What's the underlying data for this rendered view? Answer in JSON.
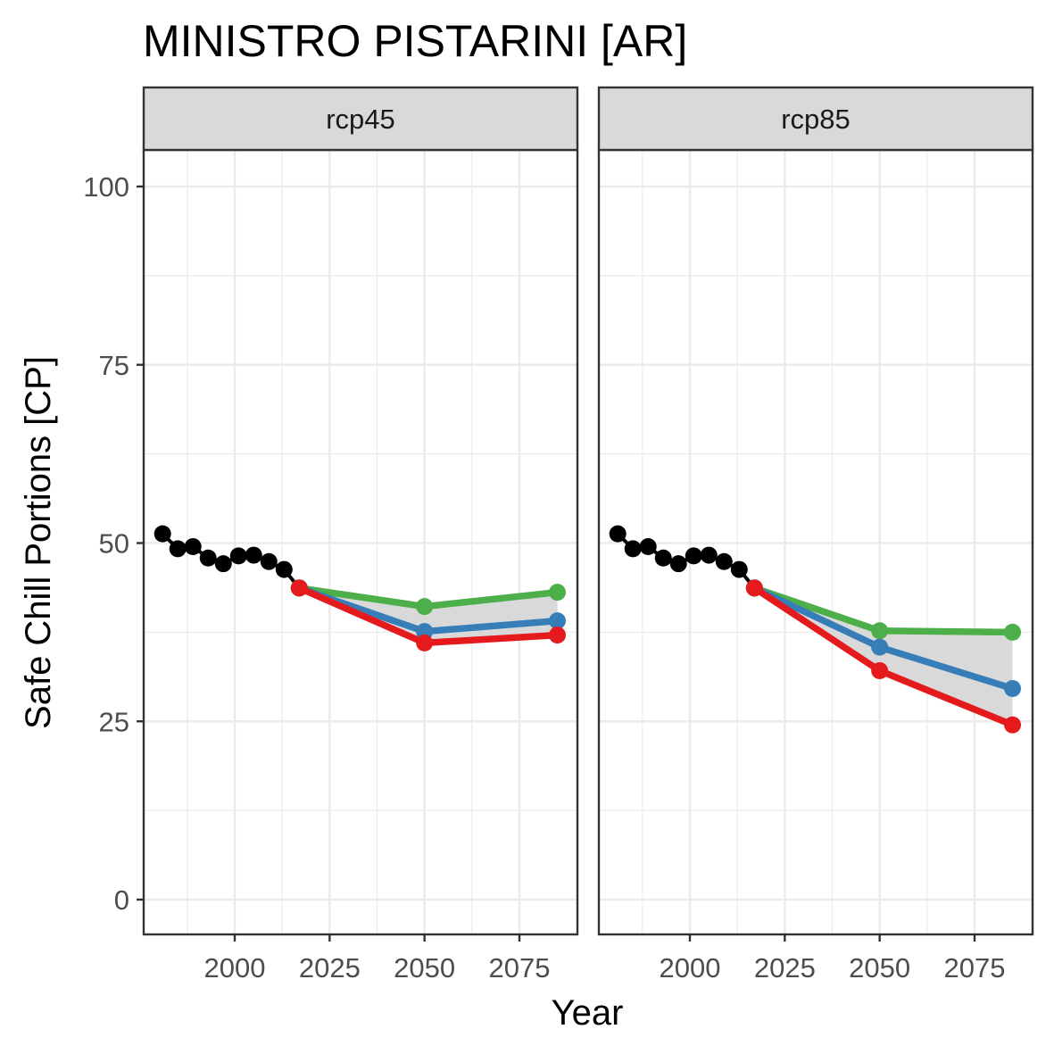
{
  "chart_data": {
    "type": "line",
    "title": "MINISTRO PISTARINI [AR]",
    "xlabel": "Year",
    "ylabel": "Safe Chill Portions [CP]",
    "xlim": [
      1977,
      2091
    ],
    "ylim": [
      -5,
      105
    ],
    "x_ticks": [
      2000,
      2025,
      2050,
      2075
    ],
    "y_ticks": [
      0,
      25,
      50,
      75,
      100
    ],
    "x_tick_labels": [
      "2000",
      "2025",
      "2050",
      "2075"
    ],
    "y_tick_labels": [
      "0",
      "25",
      "50",
      "75",
      "100"
    ],
    "grid": true,
    "colors": {
      "historic": "#000000",
      "green": "#4DAF4A",
      "blue": "#377EB8",
      "red": "#E41A1C",
      "ribbon": "#D9D9D9",
      "strip_bg": "#D9D9D9",
      "grid_major": "#EBEBEB",
      "panel_border": "#333333"
    },
    "historic": {
      "x": [
        1981,
        1985,
        1989,
        1993,
        1997,
        2001,
        2005,
        2009,
        2013,
        2017
      ],
      "y": [
        51.3,
        49.2,
        49.5,
        47.9,
        47.1,
        48.2,
        48.3,
        47.4,
        46.3,
        43.7
      ]
    },
    "panels": [
      {
        "label": "rcp45",
        "series": [
          {
            "color_key": "green",
            "x": [
              2017,
              2050,
              2085
            ],
            "y": [
              43.7,
              41.1,
              43.1
            ]
          },
          {
            "color_key": "blue",
            "x": [
              2017,
              2050,
              2085
            ],
            "y": [
              43.7,
              37.6,
              39.1
            ]
          },
          {
            "color_key": "red",
            "x": [
              2017,
              2050,
              2085
            ],
            "y": [
              43.7,
              36.0,
              37.1
            ]
          }
        ],
        "ribbon": {
          "x": [
            2017,
            2050,
            2085
          ],
          "ymin": [
            43.7,
            36.0,
            37.1
          ],
          "ymax": [
            43.7,
            41.1,
            43.1
          ]
        }
      },
      {
        "label": "rcp85",
        "series": [
          {
            "color_key": "green",
            "x": [
              2017,
              2050,
              2085
            ],
            "y": [
              43.7,
              37.7,
              37.5
            ]
          },
          {
            "color_key": "blue",
            "x": [
              2017,
              2050,
              2085
            ],
            "y": [
              43.7,
              35.4,
              29.6
            ]
          },
          {
            "color_key": "red",
            "x": [
              2017,
              2050,
              2085
            ],
            "y": [
              43.7,
              32.1,
              24.5
            ]
          }
        ],
        "ribbon": {
          "x": [
            2017,
            2050,
            2085
          ],
          "ymin": [
            43.7,
            32.1,
            24.5
          ],
          "ymax": [
            43.7,
            37.7,
            37.5
          ]
        }
      }
    ]
  }
}
